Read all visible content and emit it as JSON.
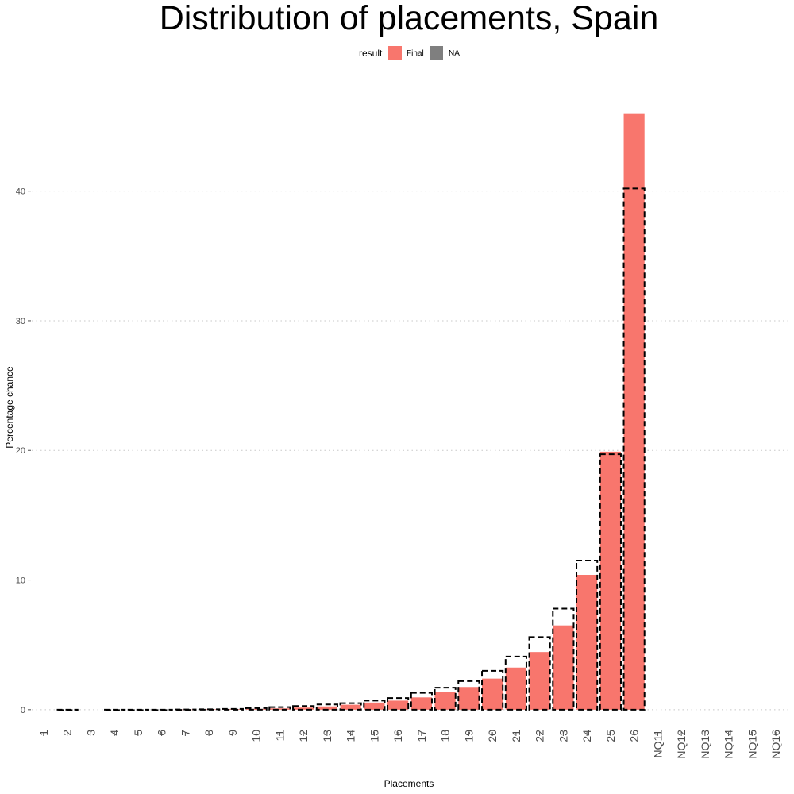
{
  "chart_data": {
    "type": "bar",
    "title": "Distribution of placements, Spain",
    "xlabel": "Placements",
    "ylabel": "Percentage chance",
    "ylim": [
      -0.5,
      48
    ],
    "yticks": [
      0,
      10,
      20,
      30,
      40
    ],
    "grid": "horizontal dotted major lines",
    "legend": {
      "title": "result",
      "position": "top",
      "entries": [
        {
          "label": "Final",
          "color": "#F8766D"
        },
        {
          "label": "NA",
          "color": "#7F7F7F"
        }
      ]
    },
    "categories": [
      "1",
      "2",
      "3",
      "4",
      "5",
      "6",
      "7",
      "8",
      "9",
      "10",
      "11",
      "12",
      "13",
      "14",
      "15",
      "16",
      "17",
      "18",
      "19",
      "20",
      "21",
      "22",
      "23",
      "24",
      "25",
      "26",
      "NQ11",
      "NQ12",
      "NQ13",
      "NQ14",
      "NQ15",
      "NQ16"
    ],
    "series": [
      {
        "name": "Final",
        "color": "#F8766D",
        "style": "filled bars",
        "values": [
          0,
          0,
          0,
          0,
          0,
          0,
          0.01,
          0.02,
          0.04,
          0.06,
          0.1,
          0.16,
          0.25,
          0.38,
          0.55,
          0.7,
          0.95,
          1.35,
          1.75,
          2.4,
          3.25,
          4.45,
          6.5,
          10.4,
          19.9,
          46.0,
          0,
          0,
          0,
          0,
          0,
          0
        ]
      },
      {
        "style": "dashed outline bars",
        "color": "#000000",
        "values": [
          null,
          0,
          null,
          0,
          0,
          0,
          0.01,
          0.03,
          0.06,
          0.12,
          0.2,
          0.28,
          0.4,
          0.5,
          0.7,
          0.9,
          1.3,
          1.7,
          2.2,
          3.0,
          4.1,
          5.6,
          7.8,
          11.5,
          19.7,
          40.2,
          null,
          null,
          null,
          null,
          null,
          null
        ]
      }
    ]
  }
}
